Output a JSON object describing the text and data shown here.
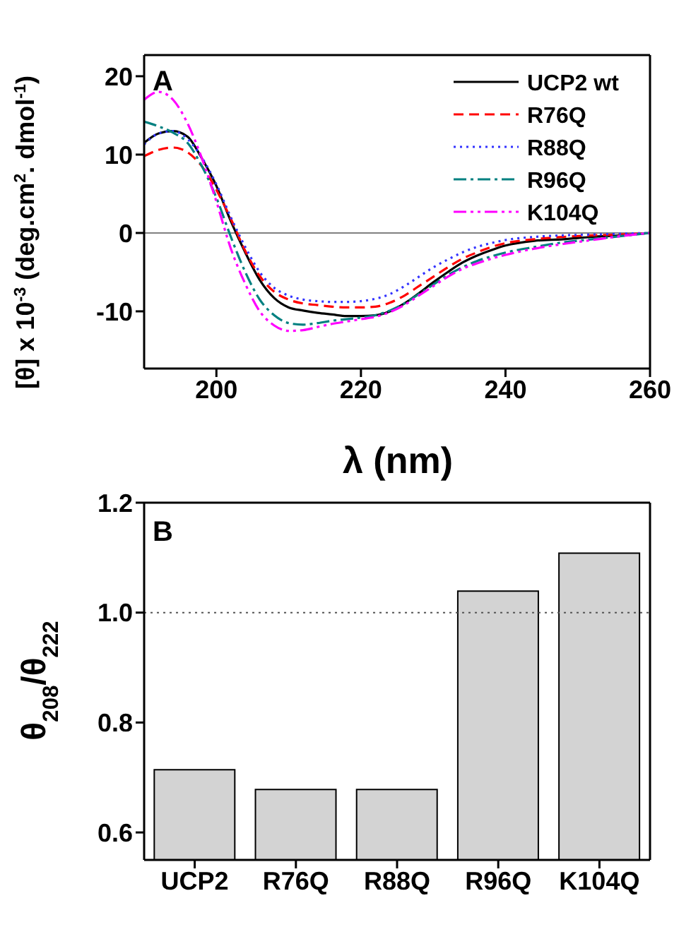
{
  "chart_data": [
    {
      "type": "line",
      "xlabel": "λ (nm)",
      "ylabel": "[θ] x 10$^{-3}$ (deg.cm$^{2}$. dmol$^{-1}$)",
      "annotations": [
        "A"
      ],
      "x": [
        190,
        192,
        194,
        196,
        198,
        200,
        202,
        204,
        206,
        208,
        210,
        212,
        214,
        216,
        218,
        220,
        222,
        224,
        226,
        228,
        230,
        232,
        234,
        236,
        238,
        240,
        244,
        248,
        252,
        256,
        260
      ],
      "series": [
        {
          "name": "UCP2 wt",
          "color": "#000000",
          "line_style": "solid",
          "values": [
            11.5,
            12.7,
            13,
            12.3,
            9.5,
            6,
            1.5,
            -2.5,
            -6,
            -8.3,
            -9.5,
            -9.9,
            -10.2,
            -10.4,
            -10.6,
            -10.6,
            -10.5,
            -10,
            -9,
            -7.7,
            -6.3,
            -5,
            -3.8,
            -2.9,
            -2.2,
            -1.6,
            -1,
            -0.8,
            -0.5,
            -0.3,
            0
          ]
        },
        {
          "name": "R76Q",
          "color": "#ff0000",
          "line_style": "dashed",
          "values": [
            9.8,
            10.6,
            10.9,
            10.3,
            8.5,
            5.5,
            1.8,
            -2.3,
            -5.5,
            -7.5,
            -8.5,
            -9,
            -9.2,
            -9.4,
            -9.5,
            -9.5,
            -9.4,
            -8.9,
            -8,
            -6.8,
            -5.6,
            -4.4,
            -3.3,
            -2.5,
            -1.8,
            -1.3,
            -0.8,
            -0.5,
            -0.3,
            -0.2,
            0
          ]
        },
        {
          "name": "R88Q",
          "color": "#3333ff",
          "line_style": "dotted",
          "values": [
            11.3,
            12.7,
            13,
            12,
            9.6,
            6.2,
            2,
            -1.8,
            -5,
            -7,
            -8,
            -8.5,
            -8.7,
            -8.8,
            -8.8,
            -8.7,
            -8.4,
            -7.8,
            -6.8,
            -5.6,
            -4.4,
            -3.4,
            -2.5,
            -1.8,
            -1.3,
            -0.9,
            -0.5,
            -0.3,
            -0.2,
            -0.1,
            0
          ]
        },
        {
          "name": "R96Q",
          "color": "#008080",
          "line_style": "dashdot",
          "values": [
            14.2,
            13.6,
            12.8,
            11.5,
            8.5,
            4.5,
            -0.5,
            -5,
            -8.5,
            -10.5,
            -11.5,
            -11.7,
            -11.5,
            -11.2,
            -11,
            -10.8,
            -10.5,
            -9.9,
            -9,
            -7.8,
            -6.6,
            -5.4,
            -4.4,
            -3.6,
            -3,
            -2.5,
            -1.8,
            -1.2,
            -0.8,
            -0.4,
            0
          ]
        },
        {
          "name": "K104Q",
          "color": "#ff00ff",
          "line_style": "dashdotdot",
          "values": [
            17,
            18,
            17,
            14,
            9.5,
            4,
            -2,
            -6.5,
            -10,
            -11.8,
            -12.5,
            -12.4,
            -12,
            -11.6,
            -11.3,
            -11,
            -10.7,
            -10.1,
            -9.2,
            -8,
            -6.8,
            -5.6,
            -4.6,
            -3.9,
            -3.3,
            -2.8,
            -2,
            -1.4,
            -0.9,
            -0.4,
            0
          ]
        }
      ],
      "xlim": [
        190,
        260
      ],
      "xticks": [
        200,
        220,
        240,
        260
      ],
      "ylim": [
        -17.3,
        22.7
      ],
      "yticks": [
        -10,
        0,
        10,
        20
      ],
      "ref_lines": [
        {
          "axis": "y",
          "value": 0,
          "color": "#808080",
          "line_style": "solid"
        }
      ],
      "legend": "top right"
    },
    {
      "type": "bar",
      "ylabel": "θ$_{208}$/θ$_{222}$",
      "annotations": [
        "B"
      ],
      "categories": [
        "UCP2",
        "R76Q",
        "R88Q",
        "R96Q",
        "K104Q"
      ],
      "values": [
        0.714,
        0.678,
        0.678,
        1.039,
        1.108
      ],
      "color": "#d3d3d3",
      "ylim": [
        0.55,
        1.2
      ],
      "yticks": [
        0.6,
        0.8,
        {
          "value": 1,
          "label": "1.0"
        },
        1.2
      ],
      "ref_lines": [
        {
          "axis": "y",
          "value": 1,
          "color": "#555555",
          "line_style": "dotted"
        }
      ]
    }
  ]
}
